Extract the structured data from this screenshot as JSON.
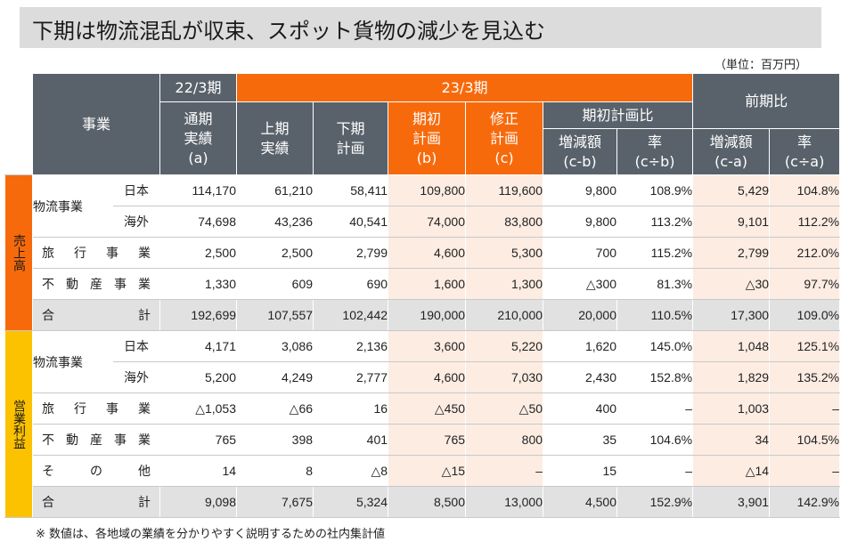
{
  "title": "下期は物流混乱が収束、スポット貨物の減少を見込む",
  "unit": "（単位：百万円）",
  "header": {
    "business": "事業",
    "fy22": "22/3期",
    "fy23": "23/3期",
    "prev_compare": "前期比",
    "annual_actual": [
      "通期",
      "実績",
      "(a)"
    ],
    "h1_actual": [
      "上期",
      "実績"
    ],
    "h2_plan": [
      "下期",
      "計画"
    ],
    "initial_plan": [
      "期初",
      "計画",
      "(b)"
    ],
    "revised_plan": [
      "修正",
      "計画",
      "(c)"
    ],
    "initial_plan_compare": "期初計画比",
    "change_cb": [
      "増減額",
      "(c-b)"
    ],
    "rate_cb": [
      "率",
      "(c÷b)"
    ],
    "change_ca": [
      "増減額",
      "(c-a)"
    ],
    "rate_ca": [
      "率",
      "(c÷a)"
    ]
  },
  "sections": {
    "sales": "売上高",
    "op_profit": "営業利益"
  },
  "labels": {
    "logistics": "物流事業",
    "japan": "日本",
    "overseas": "海外",
    "travel": [
      "旅",
      "行",
      "事",
      "業"
    ],
    "realestate": [
      "不",
      "動",
      "産",
      "事",
      "業"
    ],
    "other": [
      "そ",
      "の",
      "他"
    ],
    "total": [
      "合",
      "計"
    ]
  },
  "sales_rows": {
    "logi_jp": [
      "114,170",
      "61,210",
      "58,411",
      "109,800",
      "119,600",
      "9,800",
      "108.9%",
      "5,429",
      "104.8%"
    ],
    "logi_os": [
      "74,698",
      "43,236",
      "40,541",
      "74,000",
      "83,800",
      "9,800",
      "113.2%",
      "9,101",
      "112.2%"
    ],
    "travel": [
      "2,500",
      "2,500",
      "2,799",
      "4,600",
      "5,300",
      "700",
      "115.2%",
      "2,799",
      "212.0%"
    ],
    "realestate": [
      "1,330",
      "609",
      "690",
      "1,600",
      "1,300",
      "△300",
      "81.3%",
      "△30",
      "97.7%"
    ],
    "total": [
      "192,699",
      "107,557",
      "102,442",
      "190,000",
      "210,000",
      "20,000",
      "110.5%",
      "17,300",
      "109.0%"
    ]
  },
  "profit_rows": {
    "logi_jp": [
      "4,171",
      "3,086",
      "2,136",
      "3,600",
      "5,220",
      "1,620",
      "145.0%",
      "1,048",
      "125.1%"
    ],
    "logi_os": [
      "5,200",
      "4,249",
      "2,777",
      "4,600",
      "7,030",
      "2,430",
      "152.8%",
      "1,829",
      "135.2%"
    ],
    "travel": [
      "△1,053",
      "△66",
      "16",
      "△450",
      "△50",
      "400",
      "–",
      "1,003",
      "–"
    ],
    "realestate": [
      "765",
      "398",
      "401",
      "765",
      "800",
      "35",
      "104.6%",
      "34",
      "104.5%"
    ],
    "other": [
      "14",
      "8",
      "△8",
      "△15",
      "–",
      "15",
      "–",
      "△14",
      "–"
    ],
    "total": [
      "9,098",
      "7,675",
      "5,324",
      "8,500",
      "13,000",
      "4,500",
      "152.9%",
      "3,901",
      "142.9%"
    ]
  },
  "footnote": "※ 数値は、各地域の業績を分かりやすく説明するための社内集計値"
}
